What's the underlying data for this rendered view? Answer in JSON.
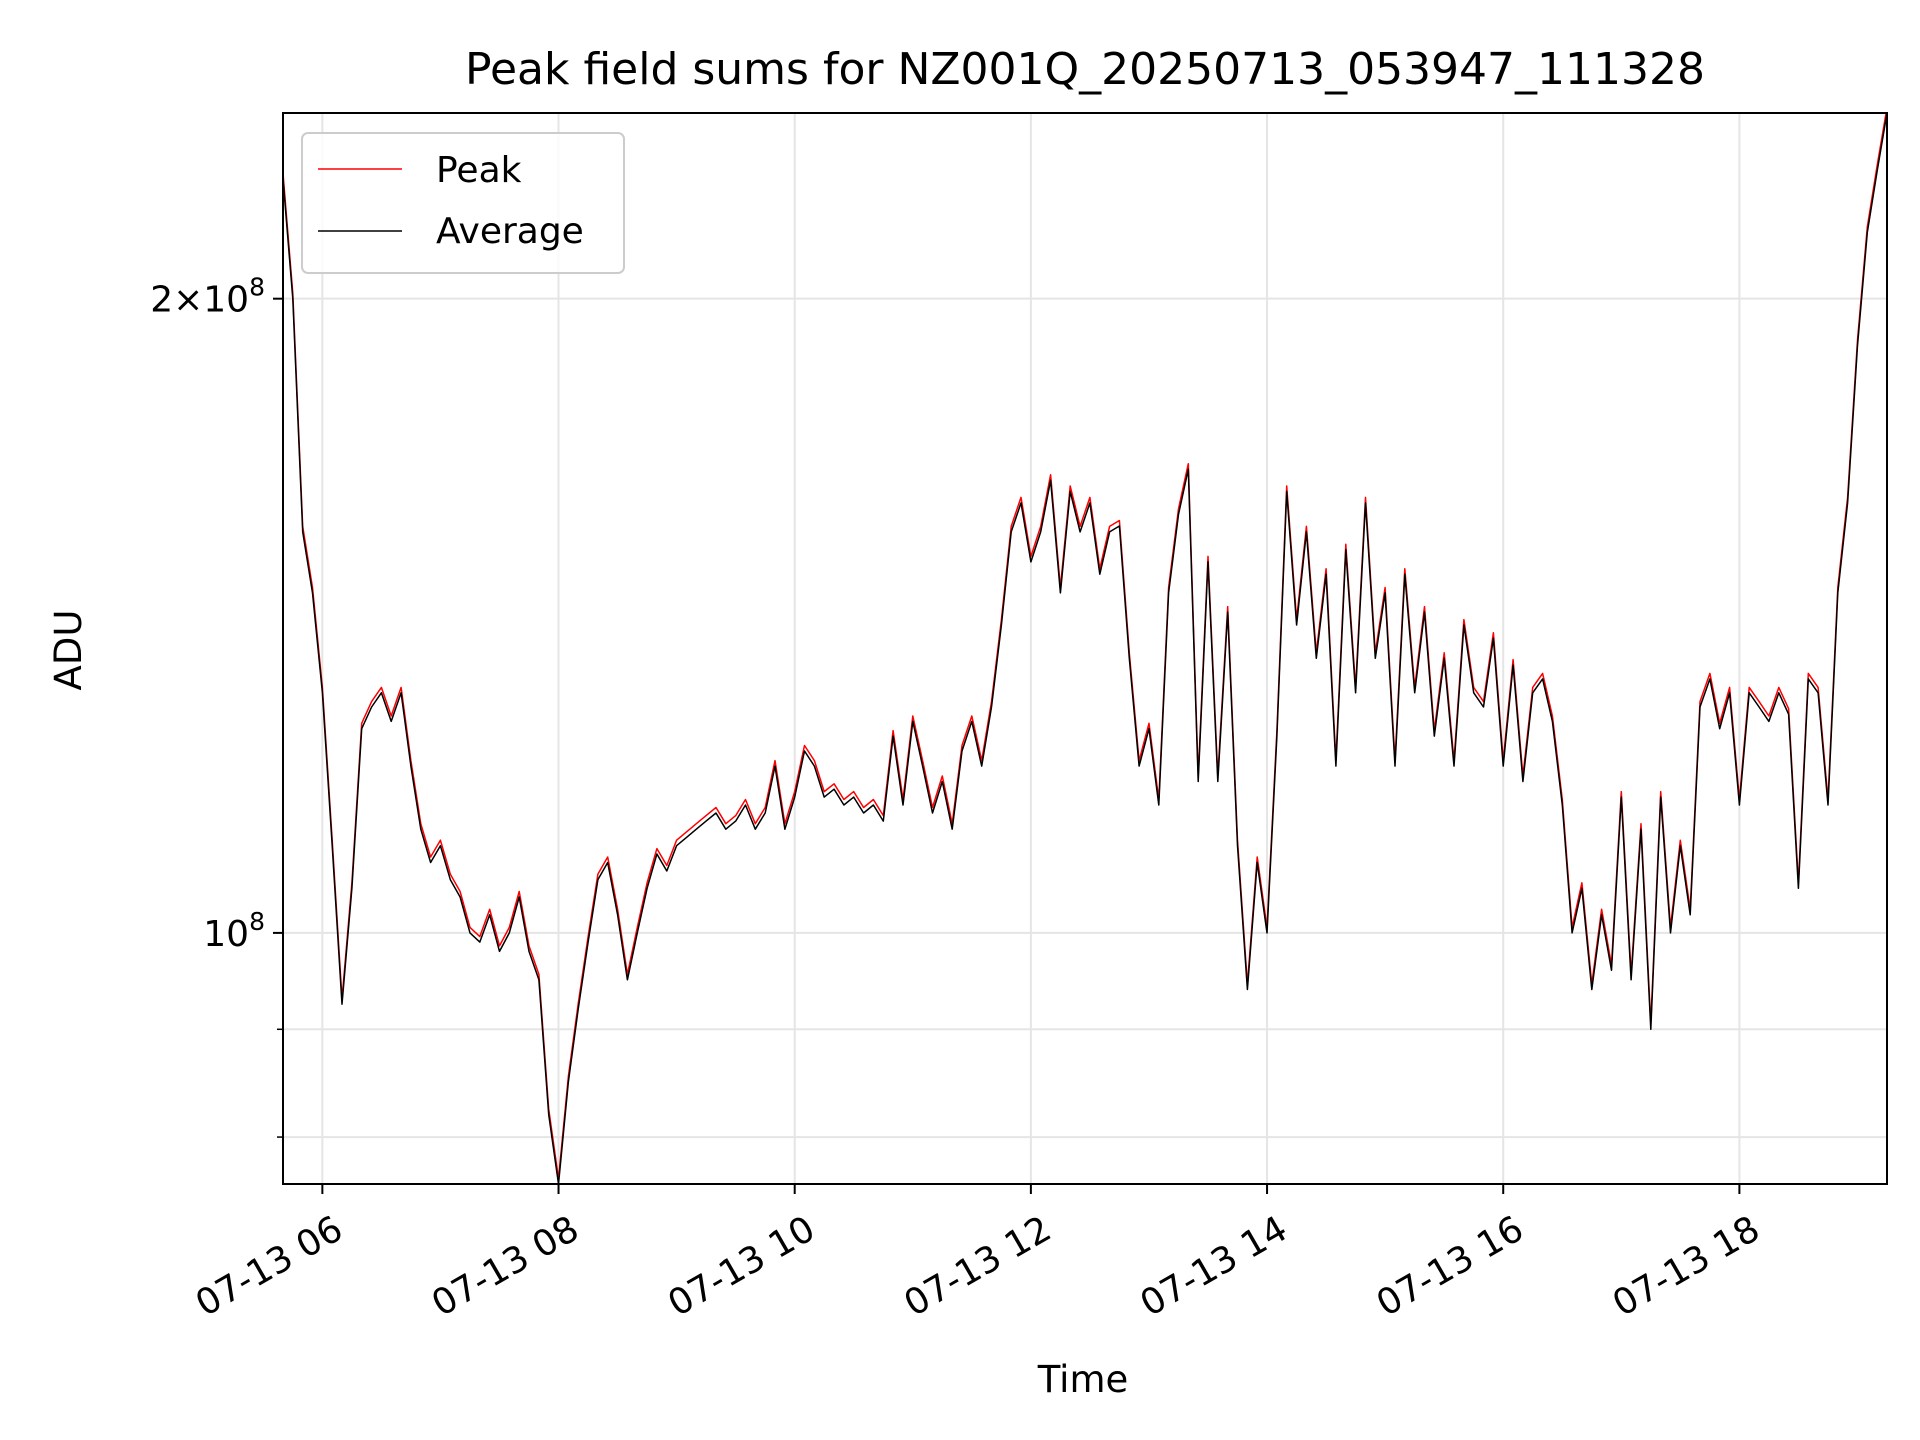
{
  "chart_data": {
    "type": "line",
    "title": "Peak field sums for NZ001Q_20250713_053947_111328",
    "xlabel": "Time",
    "ylabel": "ADU",
    "yscale": "log",
    "grid": true,
    "legend_position": "upper-left",
    "xlim": [
      "2025-07-13 05:40",
      "2025-07-13 19:15"
    ],
    "ylim": [
      76000000,
      245000000
    ],
    "x_ticks": [
      {
        "value": "2025-07-13 06:00",
        "label": "07-13 06"
      },
      {
        "value": "2025-07-13 08:00",
        "label": "07-13 08"
      },
      {
        "value": "2025-07-13 10:00",
        "label": "07-13 10"
      },
      {
        "value": "2025-07-13 12:00",
        "label": "07-13 12"
      },
      {
        "value": "2025-07-13 14:00",
        "label": "07-13 14"
      },
      {
        "value": "2025-07-13 16:00",
        "label": "07-13 16"
      },
      {
        "value": "2025-07-13 18:00",
        "label": "07-13 18"
      }
    ],
    "y_ticks": [
      {
        "value": 100000000,
        "base": "10",
        "exp": "8"
      },
      {
        "value": 200000000,
        "mant": "2",
        "base": "10",
        "exp": "8"
      }
    ],
    "y_minor_ticks": [
      80000000,
      90000000
    ],
    "series": [
      {
        "name": "Peak",
        "color": "#ff0000"
      },
      {
        "name": "Average",
        "color": "#000000"
      }
    ],
    "x": [
      "05:40",
      "05:45",
      "05:50",
      "05:55",
      "06:00",
      "06:05",
      "06:10",
      "06:15",
      "06:20",
      "06:25",
      "06:30",
      "06:35",
      "06:40",
      "06:45",
      "06:50",
      "06:55",
      "07:00",
      "07:05",
      "07:10",
      "07:15",
      "07:20",
      "07:25",
      "07:30",
      "07:35",
      "07:40",
      "07:45",
      "07:50",
      "07:55",
      "08:00",
      "08:05",
      "08:10",
      "08:15",
      "08:20",
      "08:25",
      "08:30",
      "08:35",
      "08:40",
      "08:45",
      "08:50",
      "08:55",
      "09:00",
      "09:05",
      "09:10",
      "09:15",
      "09:20",
      "09:25",
      "09:30",
      "09:35",
      "09:40",
      "09:45",
      "09:50",
      "09:55",
      "10:00",
      "10:05",
      "10:10",
      "10:15",
      "10:20",
      "10:25",
      "10:30",
      "10:35",
      "10:40",
      "10:45",
      "10:50",
      "10:55",
      "11:00",
      "11:05",
      "11:10",
      "11:15",
      "11:20",
      "11:25",
      "11:30",
      "11:35",
      "11:40",
      "11:45",
      "11:50",
      "11:55",
      "12:00",
      "12:05",
      "12:10",
      "12:15",
      "12:20",
      "12:25",
      "12:30",
      "12:35",
      "12:40",
      "12:45",
      "12:50",
      "12:55",
      "13:00",
      "13:05",
      "13:10",
      "13:15",
      "13:20",
      "13:25",
      "13:30",
      "13:35",
      "13:40",
      "13:45",
      "13:50",
      "13:55",
      "14:00",
      "14:05",
      "14:10",
      "14:15",
      "14:20",
      "14:25",
      "14:30",
      "14:35",
      "14:40",
      "14:45",
      "14:50",
      "14:55",
      "15:00",
      "15:05",
      "15:10",
      "15:15",
      "15:20",
      "15:25",
      "15:30",
      "15:35",
      "15:40",
      "15:45",
      "15:50",
      "15:55",
      "16:00",
      "16:05",
      "16:10",
      "16:15",
      "16:20",
      "16:25",
      "16:30",
      "16:35",
      "16:40",
      "16:45",
      "16:50",
      "16:55",
      "17:00",
      "17:05",
      "17:10",
      "17:15",
      "17:20",
      "17:25",
      "17:30",
      "17:35",
      "17:40",
      "17:45",
      "17:50",
      "17:55",
      "18:00",
      "18:05",
      "18:10",
      "18:15",
      "18:20",
      "18:25",
      "18:30",
      "18:35",
      "18:40",
      "18:45",
      "18:50",
      "18:55",
      "19:00",
      "19:05",
      "19:10",
      "19:15"
    ],
    "values_average": [
      228000000.0,
      200000000.0,
      155000000.0,
      145000000.0,
      130000000.0,
      110000000.0,
      92500000.0,
      105000000.0,
      125000000.0,
      128000000.0,
      130000000.0,
      126000000.0,
      130000000.0,
      120000000.0,
      112000000.0,
      108000000.0,
      110000000.0,
      106000000.0,
      104000000.0,
      100000000.0,
      99000000.0,
      102000000.0,
      98000000.0,
      100000000.0,
      104000000.0,
      98000000.0,
      95000000.0,
      82000000.0,
      76000000.0,
      85000000.0,
      92000000.0,
      99000000.0,
      106000000.0,
      108000000.0,
      102000000.0,
      95000000.0,
      100000000.0,
      105000000.0,
      109000000.0,
      107000000.0,
      110000000.0,
      111000000.0,
      112000000.0,
      113000000.0,
      114000000.0,
      112000000.0,
      113000000.0,
      115000000.0,
      112000000.0,
      114000000.0,
      120000000.0,
      112000000.0,
      116000000.0,
      122000000.0,
      120000000.0,
      116000000.0,
      117000000.0,
      115000000.0,
      116000000.0,
      114000000.0,
      115000000.0,
      113000000.0,
      124000000.0,
      115000000.0,
      126000000.0,
      120000000.0,
      114000000.0,
      118000000.0,
      112000000.0,
      122000000.0,
      126000000.0,
      120000000.0,
      128000000.0,
      140000000.0,
      155000000.0,
      160000000.0,
      150000000.0,
      155000000.0,
      164000000.0,
      145000000.0,
      162000000.0,
      155000000.0,
      160000000.0,
      148000000.0,
      155000000.0,
      156000000.0,
      135000000.0,
      120000000.0,
      125000000.0,
      115000000.0,
      145000000.0,
      158000000.0,
      166000000.0,
      118000000.0,
      150000000.0,
      118000000.0,
      142000000.0,
      110000000.0,
      94000000.0,
      108000000.0,
      100000000.0,
      124000000.0,
      162000000.0,
      140000000.0,
      155000000.0,
      135000000.0,
      148000000.0,
      120000000.0,
      152000000.0,
      130000000.0,
      160000000.0,
      135000000.0,
      145000000.0,
      120000000.0,
      148000000.0,
      130000000.0,
      142000000.0,
      124000000.0,
      135000000.0,
      120000000.0,
      140000000.0,
      130000000.0,
      128000000.0,
      138000000.0,
      120000000.0,
      134000000.0,
      118000000.0,
      130000000.0,
      132000000.0,
      126000000.0,
      115000000.0,
      100000000.0,
      105000000.0,
      94000000.0,
      102000000.0,
      96000000.0,
      116000000.0,
      95000000.0,
      112000000.0,
      90000000.0,
      116000000.0,
      100000000.0,
      110000000.0,
      102000000.0,
      128000000.0,
      132000000.0,
      125000000.0,
      130000000.0,
      115000000.0,
      130000000.0,
      128000000.0,
      126000000.0,
      130000000.0,
      127000000.0,
      105000000.0,
      132000000.0,
      130000000.0,
      115000000.0,
      145000000.0,
      160000000.0,
      190000000.0,
      215000000.0,
      230000000.0,
      245000000.0
    ],
    "peak_ratio": 1.006
  }
}
